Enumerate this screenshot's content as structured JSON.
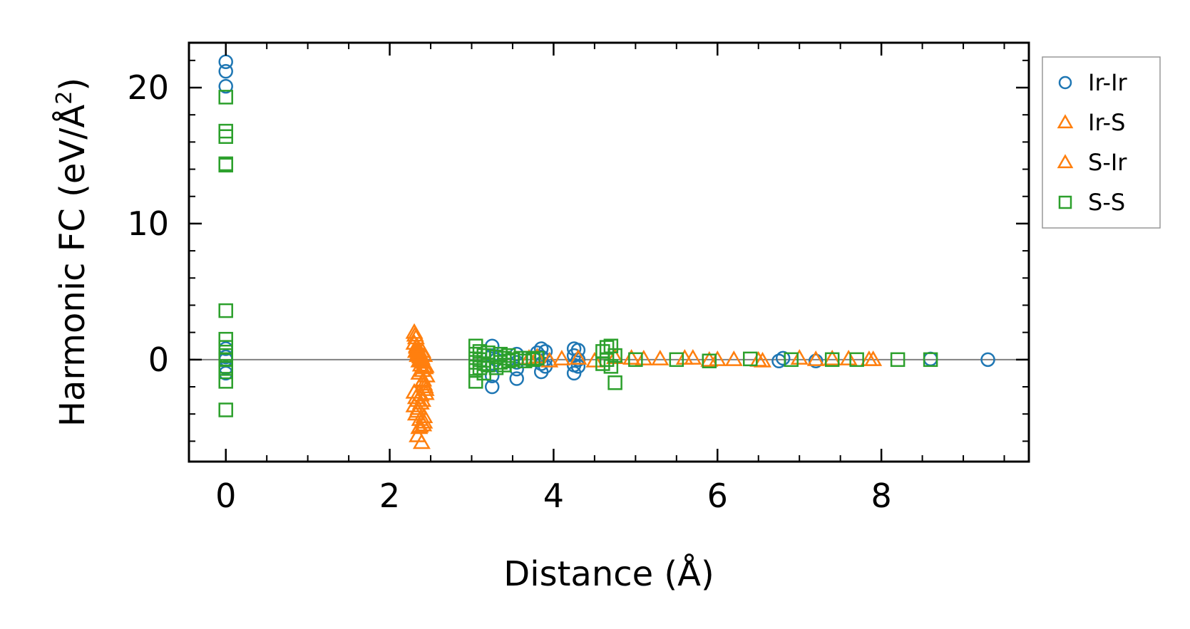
{
  "chart_data": {
    "type": "scatter",
    "title": "",
    "xlabel": "Distance (Å)",
    "ylabel": "Harmonic FC (eV/Å²)",
    "ylabel_base": "Harmonic FC (eV/Å",
    "ylabel_sup": "2",
    "ylabel_close": ")",
    "xlim": [
      -0.45,
      9.8
    ],
    "ylim": [
      -7.5,
      23.3
    ],
    "xticks": [
      0,
      2,
      4,
      6,
      8
    ],
    "yticks": [
      0,
      10,
      20
    ],
    "x_minor_step": 0.5,
    "y_minor_step": 2,
    "zero_line": true,
    "grid": false,
    "legend_position": "outside-right-top",
    "series": [
      {
        "name": "Ir-Ir",
        "marker": "circle",
        "color": "#1f77b4",
        "x": [
          0,
          0,
          0,
          0,
          0,
          0,
          0,
          0,
          3.25,
          3.25,
          3.25,
          3.25,
          3.25,
          3.3,
          3.55,
          3.55,
          3.55,
          3.55,
          3.8,
          3.85,
          3.85,
          3.85,
          3.85,
          3.9,
          3.9,
          3.9,
          4.25,
          4.25,
          4.25,
          4.25,
          4.3,
          4.3,
          4.3,
          6.75,
          6.8,
          7.2,
          8.6,
          9.3
        ],
        "y": [
          21.9,
          21.2,
          20.1,
          0.8,
          0.2,
          0,
          -0.6,
          -1.0,
          1.0,
          0.3,
          -0.4,
          -1.2,
          -2.0,
          0,
          0.4,
          -0.2,
          -0.7,
          -1.4,
          0.5,
          0.8,
          0.2,
          -0.3,
          -0.9,
          0.6,
          0,
          -0.5,
          0.8,
          0.3,
          -0.4,
          -1.0,
          0.7,
          0,
          -0.5,
          -0.1,
          0.1,
          -0.1,
          0.05,
          0
        ]
      },
      {
        "name": "Ir-S",
        "marker": "triangle",
        "color": "#ff7f0e",
        "x": [
          2.3,
          2.3,
          2.32,
          2.32,
          2.33,
          2.34,
          2.35,
          2.36,
          2.37,
          2.38,
          2.39,
          2.4,
          2.4,
          2.41,
          2.42,
          2.43,
          2.44,
          2.45,
          2.3,
          2.34,
          2.38,
          2.42,
          2.3,
          2.35,
          2.4,
          2.44,
          2.32,
          2.37,
          2.42,
          2.36,
          2.41,
          2.34,
          2.39,
          3.7,
          4.1,
          4.5,
          5.1,
          5.6,
          6.0,
          6.5,
          7.4,
          7.9
        ],
        "y": [
          2.0,
          1.2,
          1.6,
          0.6,
          0.9,
          0.3,
          0.5,
          -0.1,
          0.2,
          -0.4,
          0.1,
          -0.8,
          0.6,
          -1.5,
          0.3,
          -2.0,
          -0.5,
          -1.2,
          -2.4,
          -3.0,
          -2.6,
          -1.8,
          -3.4,
          -3.6,
          -3.0,
          -2.2,
          -4.0,
          -4.4,
          -4.6,
          -5.0,
          -4.8,
          -5.6,
          -6.1,
          0.1,
          0.05,
          -0.1,
          0.05,
          0.1,
          0,
          -0.05,
          0.05,
          0
        ]
      },
      {
        "name": "S-Ir",
        "marker": "triangle",
        "color": "#ff7f0e",
        "x": [
          2.31,
          2.33,
          2.35,
          2.37,
          2.39,
          2.41,
          2.43,
          2.36,
          2.4,
          2.44,
          2.32,
          2.38,
          2.34,
          2.42,
          2.37,
          3.8,
          3.95,
          4.3,
          4.75,
          4.95,
          5.3,
          5.7,
          5.9,
          6.2,
          6.55,
          7.0,
          7.2,
          7.6,
          7.85
        ],
        "y": [
          1.8,
          1.0,
          0.7,
          0.4,
          0,
          -0.2,
          -0.6,
          -1.0,
          -1.6,
          -2.5,
          -2.8,
          -3.2,
          -3.8,
          -4.2,
          -4.9,
          0.2,
          -0.1,
          0.1,
          0.15,
          0.1,
          0.05,
          0.1,
          -0.05,
          0,
          -0.1,
          0.1,
          0,
          0.05,
          0
        ]
      },
      {
        "name": "S-S",
        "marker": "square",
        "color": "#2ca02c",
        "x": [
          0,
          0,
          0,
          0,
          0,
          0,
          0,
          0,
          0,
          0,
          0,
          0,
          0,
          0,
          3.05,
          3.05,
          3.05,
          3.05,
          3.05,
          3.1,
          3.1,
          3.1,
          3.15,
          3.15,
          3.15,
          3.2,
          3.2,
          3.3,
          3.3,
          3.35,
          3.35,
          3.4,
          3.4,
          3.45,
          3.45,
          3.5,
          3.6,
          3.65,
          3.7,
          3.75,
          3.8,
          4.6,
          4.6,
          4.65,
          4.65,
          4.7,
          4.7,
          4.75,
          4.75,
          5.0,
          5.5,
          5.9,
          6.4,
          6.9,
          7.4,
          7.7,
          8.2,
          8.6
        ],
        "y": [
          19.3,
          16.8,
          16.4,
          14.4,
          14.3,
          3.6,
          1.5,
          0.9,
          0.3,
          0,
          -0.5,
          -0.9,
          -1.6,
          -3.7,
          1.0,
          0.4,
          -0.2,
          -0.8,
          -1.6,
          0.6,
          0,
          -0.6,
          0.3,
          -0.3,
          -1.0,
          0.5,
          -0.4,
          0.2,
          -0.6,
          0.4,
          -0.2,
          0.1,
          -0.4,
          0.3,
          -0.1,
          0,
          0.1,
          -0.1,
          0.1,
          0,
          0.1,
          0.6,
          -0.3,
          0.9,
          0,
          1.0,
          -0.5,
          0.3,
          -1.7,
          0,
          0,
          -0.1,
          0.05,
          0,
          0,
          0,
          0,
          0
        ]
      }
    ]
  }
}
